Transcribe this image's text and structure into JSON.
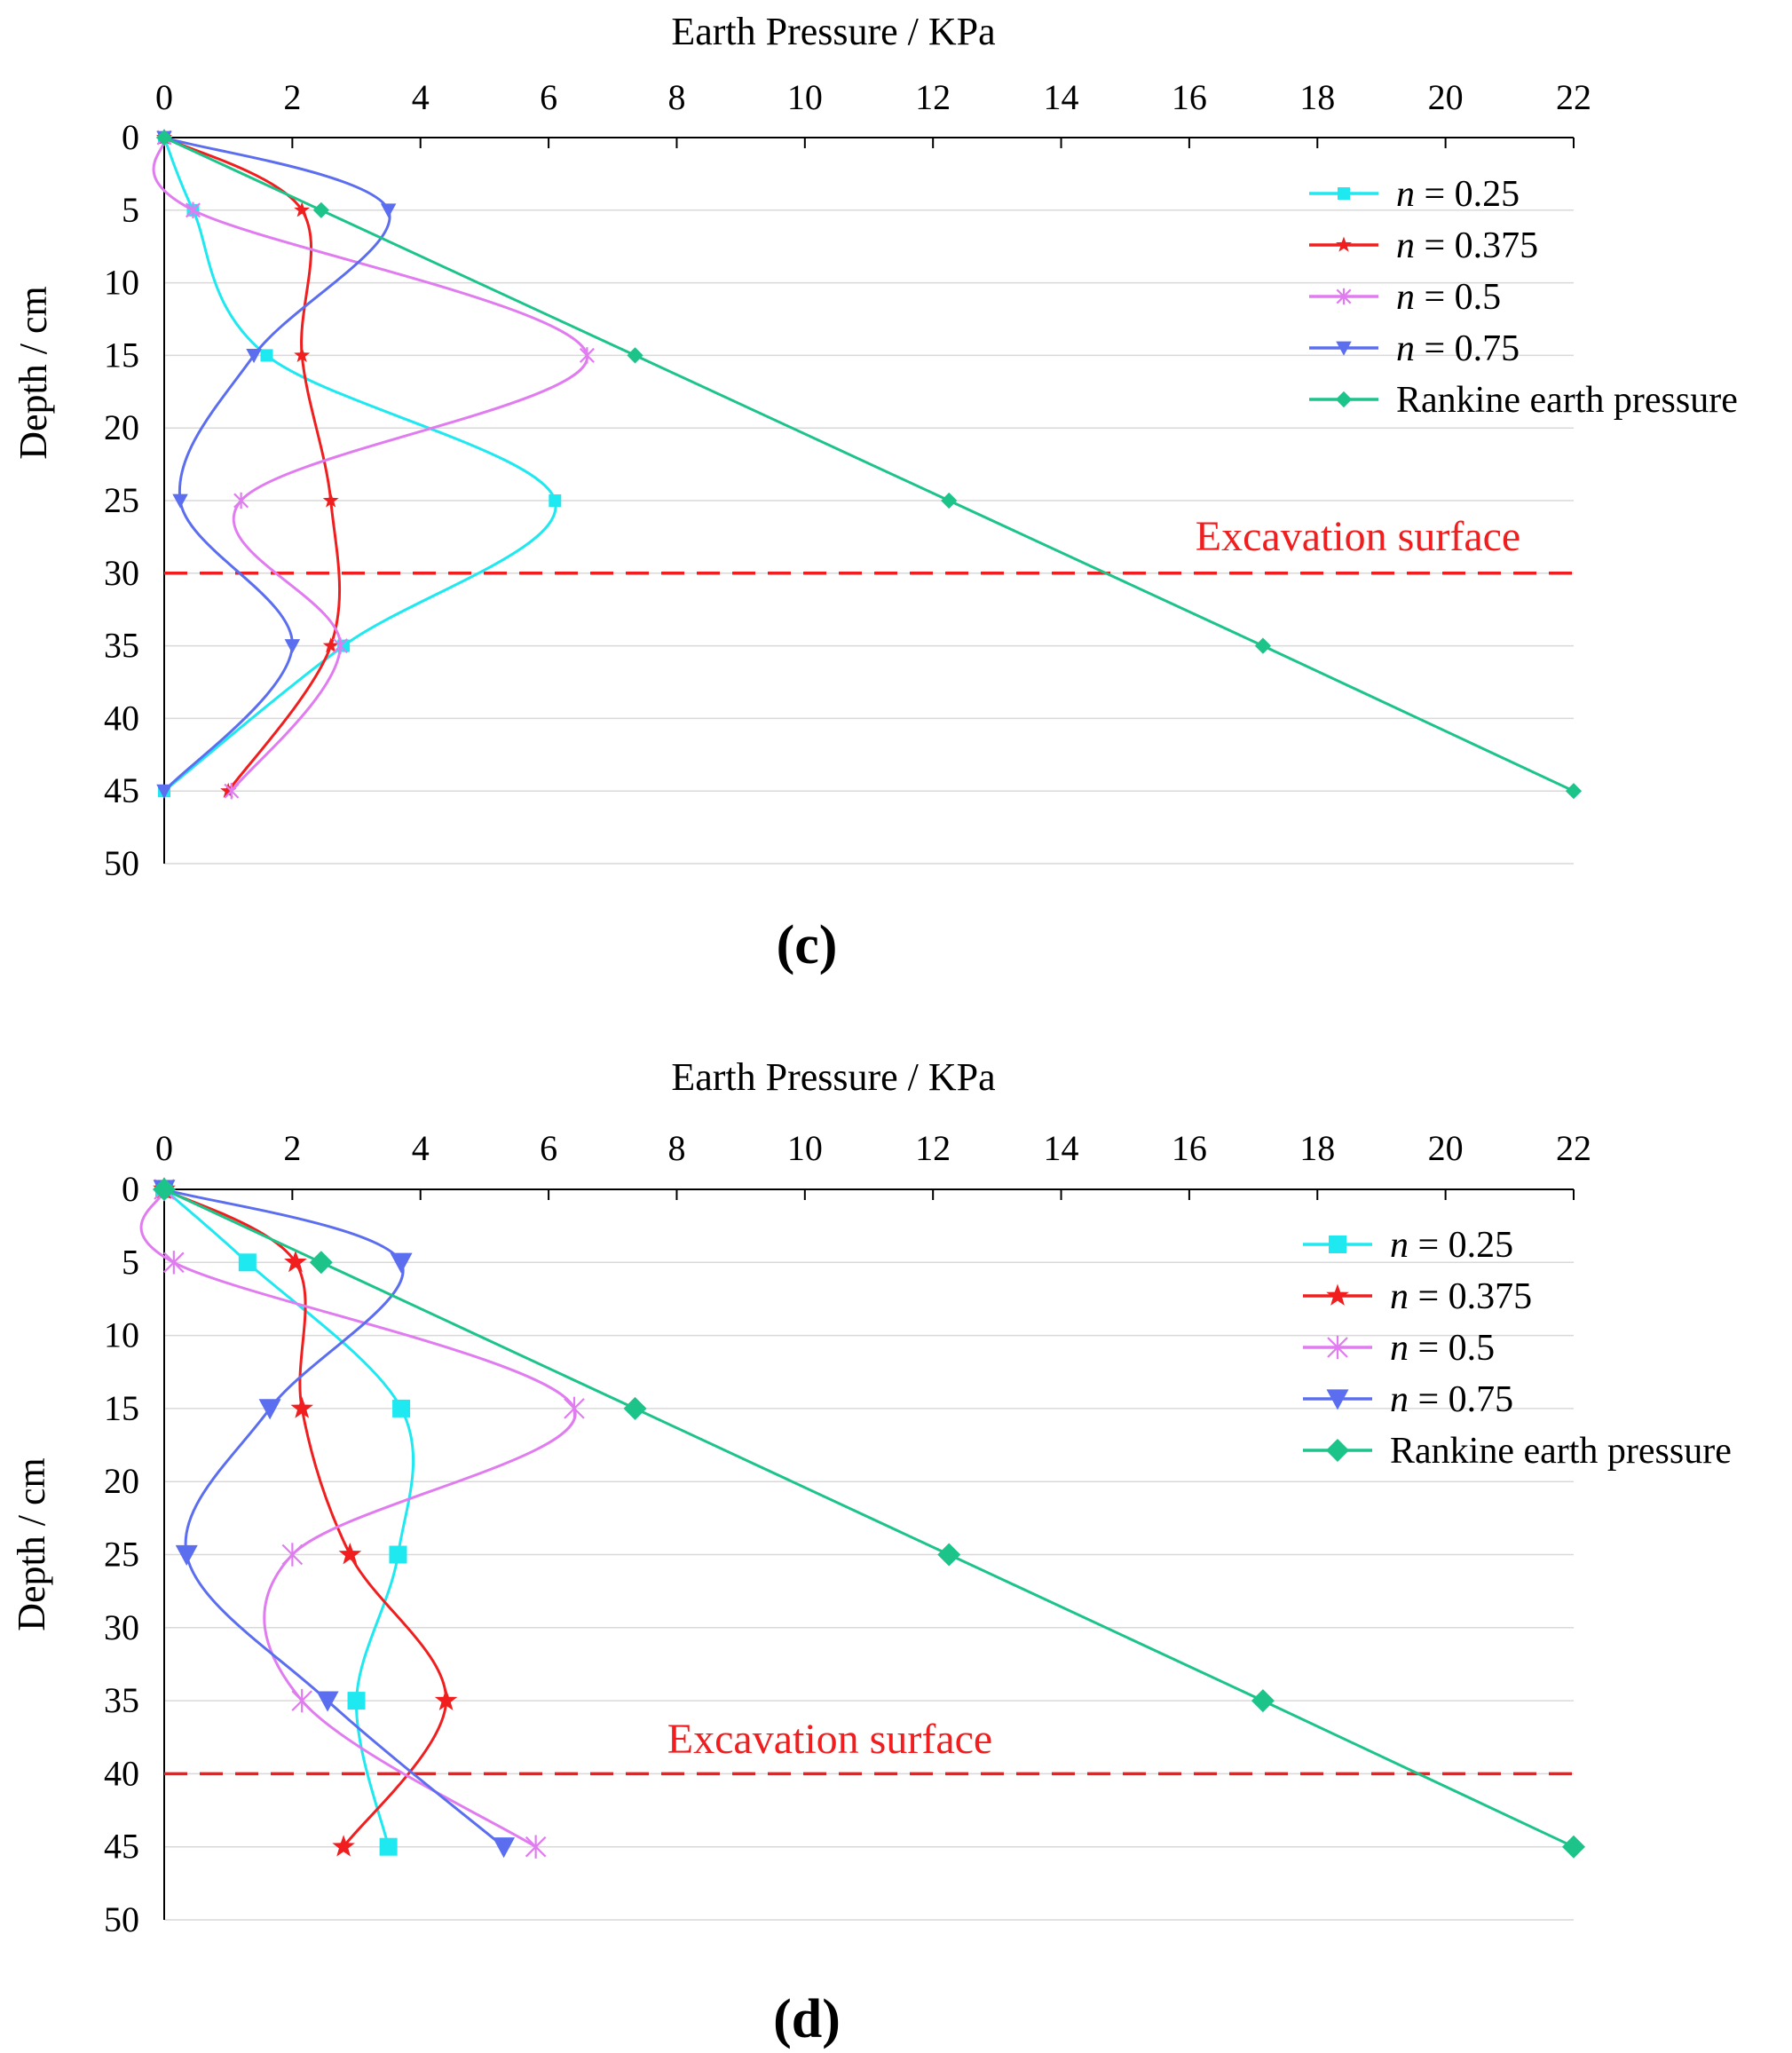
{
  "colors": {
    "cyan": "#1EE8F0",
    "red": "#F01E1E",
    "violet": "#E07CF0",
    "blue": "#5C6EF0",
    "green": "#1CC48A",
    "grid": "#D9D9D9",
    "axis": "#000000",
    "excavation": "#F01E1E"
  },
  "chart_data": [
    {
      "type": "line",
      "panel_label": "(c)",
      "title": "",
      "xlabel": "Earth Pressure / KPa",
      "ylabel": "Depth / cm",
      "xlim": [
        0,
        22
      ],
      "ylim": [
        0,
        50
      ],
      "y_inverted": true,
      "x_axis_position": "top",
      "x_ticks": [
        "0",
        "2",
        "4",
        "6",
        "8",
        "10",
        "12",
        "14",
        "16",
        "18",
        "20",
        "22"
      ],
      "y_ticks": [
        "0",
        "5",
        "10",
        "15",
        "20",
        "25",
        "30",
        "35",
        "40",
        "45",
        "50"
      ],
      "grid": "horizontal",
      "legend_position": "top-right",
      "depths": [
        0,
        5,
        15,
        25,
        35,
        45
      ],
      "series": [
        {
          "name_prefix": "n",
          "name_suffix": " = 0.25",
          "name": "n = 0.25",
          "color": "cyan",
          "marker": "square",
          "values": [
            0,
            0.45,
            1.6,
            6.1,
            2.8,
            0
          ]
        },
        {
          "name_prefix": "n",
          "name_suffix": " = 0.375",
          "name": "n = 0.375",
          "color": "red",
          "marker": "star",
          "values": [
            0,
            2.15,
            2.15,
            2.6,
            2.6,
            1.0
          ]
        },
        {
          "name_prefix": "n",
          "name_suffix": " = 0.5",
          "name": "n = 0.5",
          "color": "violet",
          "marker": "asterisk",
          "values": [
            0,
            0.45,
            6.6,
            1.2,
            2.75,
            1.05
          ]
        },
        {
          "name_prefix": "n",
          "name_suffix": " = 0.75",
          "name": "n = 0.75",
          "color": "blue",
          "marker": "triangle-down",
          "values": [
            0,
            3.5,
            1.4,
            0.25,
            2.0,
            0
          ]
        },
        {
          "name_prefix": "",
          "name_suffix": "Rankine earth pressure",
          "name": "Rankine earth pressure",
          "color": "green",
          "marker": "diamond",
          "straight": true,
          "values": [
            0,
            2.45,
            7.35,
            12.25,
            17.15,
            22.0
          ]
        }
      ],
      "annotation": {
        "text": "Excavation surface",
        "depth": 30
      }
    },
    {
      "type": "line",
      "panel_label": "(d)",
      "title": "",
      "xlabel": "Earth Pressure / KPa",
      "ylabel": "Depth / cm",
      "xlim": [
        0,
        22
      ],
      "ylim": [
        0,
        50
      ],
      "y_inverted": true,
      "x_axis_position": "top",
      "x_ticks": [
        "0",
        "2",
        "4",
        "6",
        "8",
        "10",
        "12",
        "14",
        "16",
        "18",
        "20",
        "22"
      ],
      "y_ticks": [
        "0",
        "5",
        "10",
        "15",
        "20",
        "25",
        "30",
        "35",
        "40",
        "45",
        "50"
      ],
      "grid": "horizontal",
      "legend_position": "top-right",
      "depths": [
        0,
        5,
        15,
        25,
        35,
        45
      ],
      "series": [
        {
          "name_prefix": "n",
          "name_suffix": " = 0.25",
          "name": "n = 0.25",
          "color": "cyan",
          "marker": "square",
          "values": [
            0,
            1.3,
            3.7,
            3.65,
            3.0,
            3.5
          ]
        },
        {
          "name_prefix": "n",
          "name_suffix": " = 0.375",
          "name": "n = 0.375",
          "color": "red",
          "marker": "star",
          "values": [
            0,
            2.05,
            2.15,
            2.9,
            4.4,
            2.8
          ]
        },
        {
          "name_prefix": "n",
          "name_suffix": " = 0.5",
          "name": "n = 0.5",
          "color": "violet",
          "marker": "asterisk",
          "values": [
            0,
            0.15,
            6.4,
            2.0,
            2.15,
            5.8
          ]
        },
        {
          "name_prefix": "n",
          "name_suffix": " = 0.75",
          "name": "n = 0.75",
          "color": "blue",
          "marker": "triangle-down",
          "values": [
            0,
            3.7,
            1.65,
            0.35,
            2.55,
            5.3
          ]
        },
        {
          "name_prefix": "",
          "name_suffix": "Rankine earth pressure",
          "name": "Rankine earth pressure",
          "color": "green",
          "marker": "diamond",
          "straight": true,
          "values": [
            0,
            2.45,
            7.35,
            12.25,
            17.15,
            22.0
          ]
        }
      ],
      "annotation": {
        "text": "Excavation surface",
        "depth": 40
      }
    }
  ]
}
